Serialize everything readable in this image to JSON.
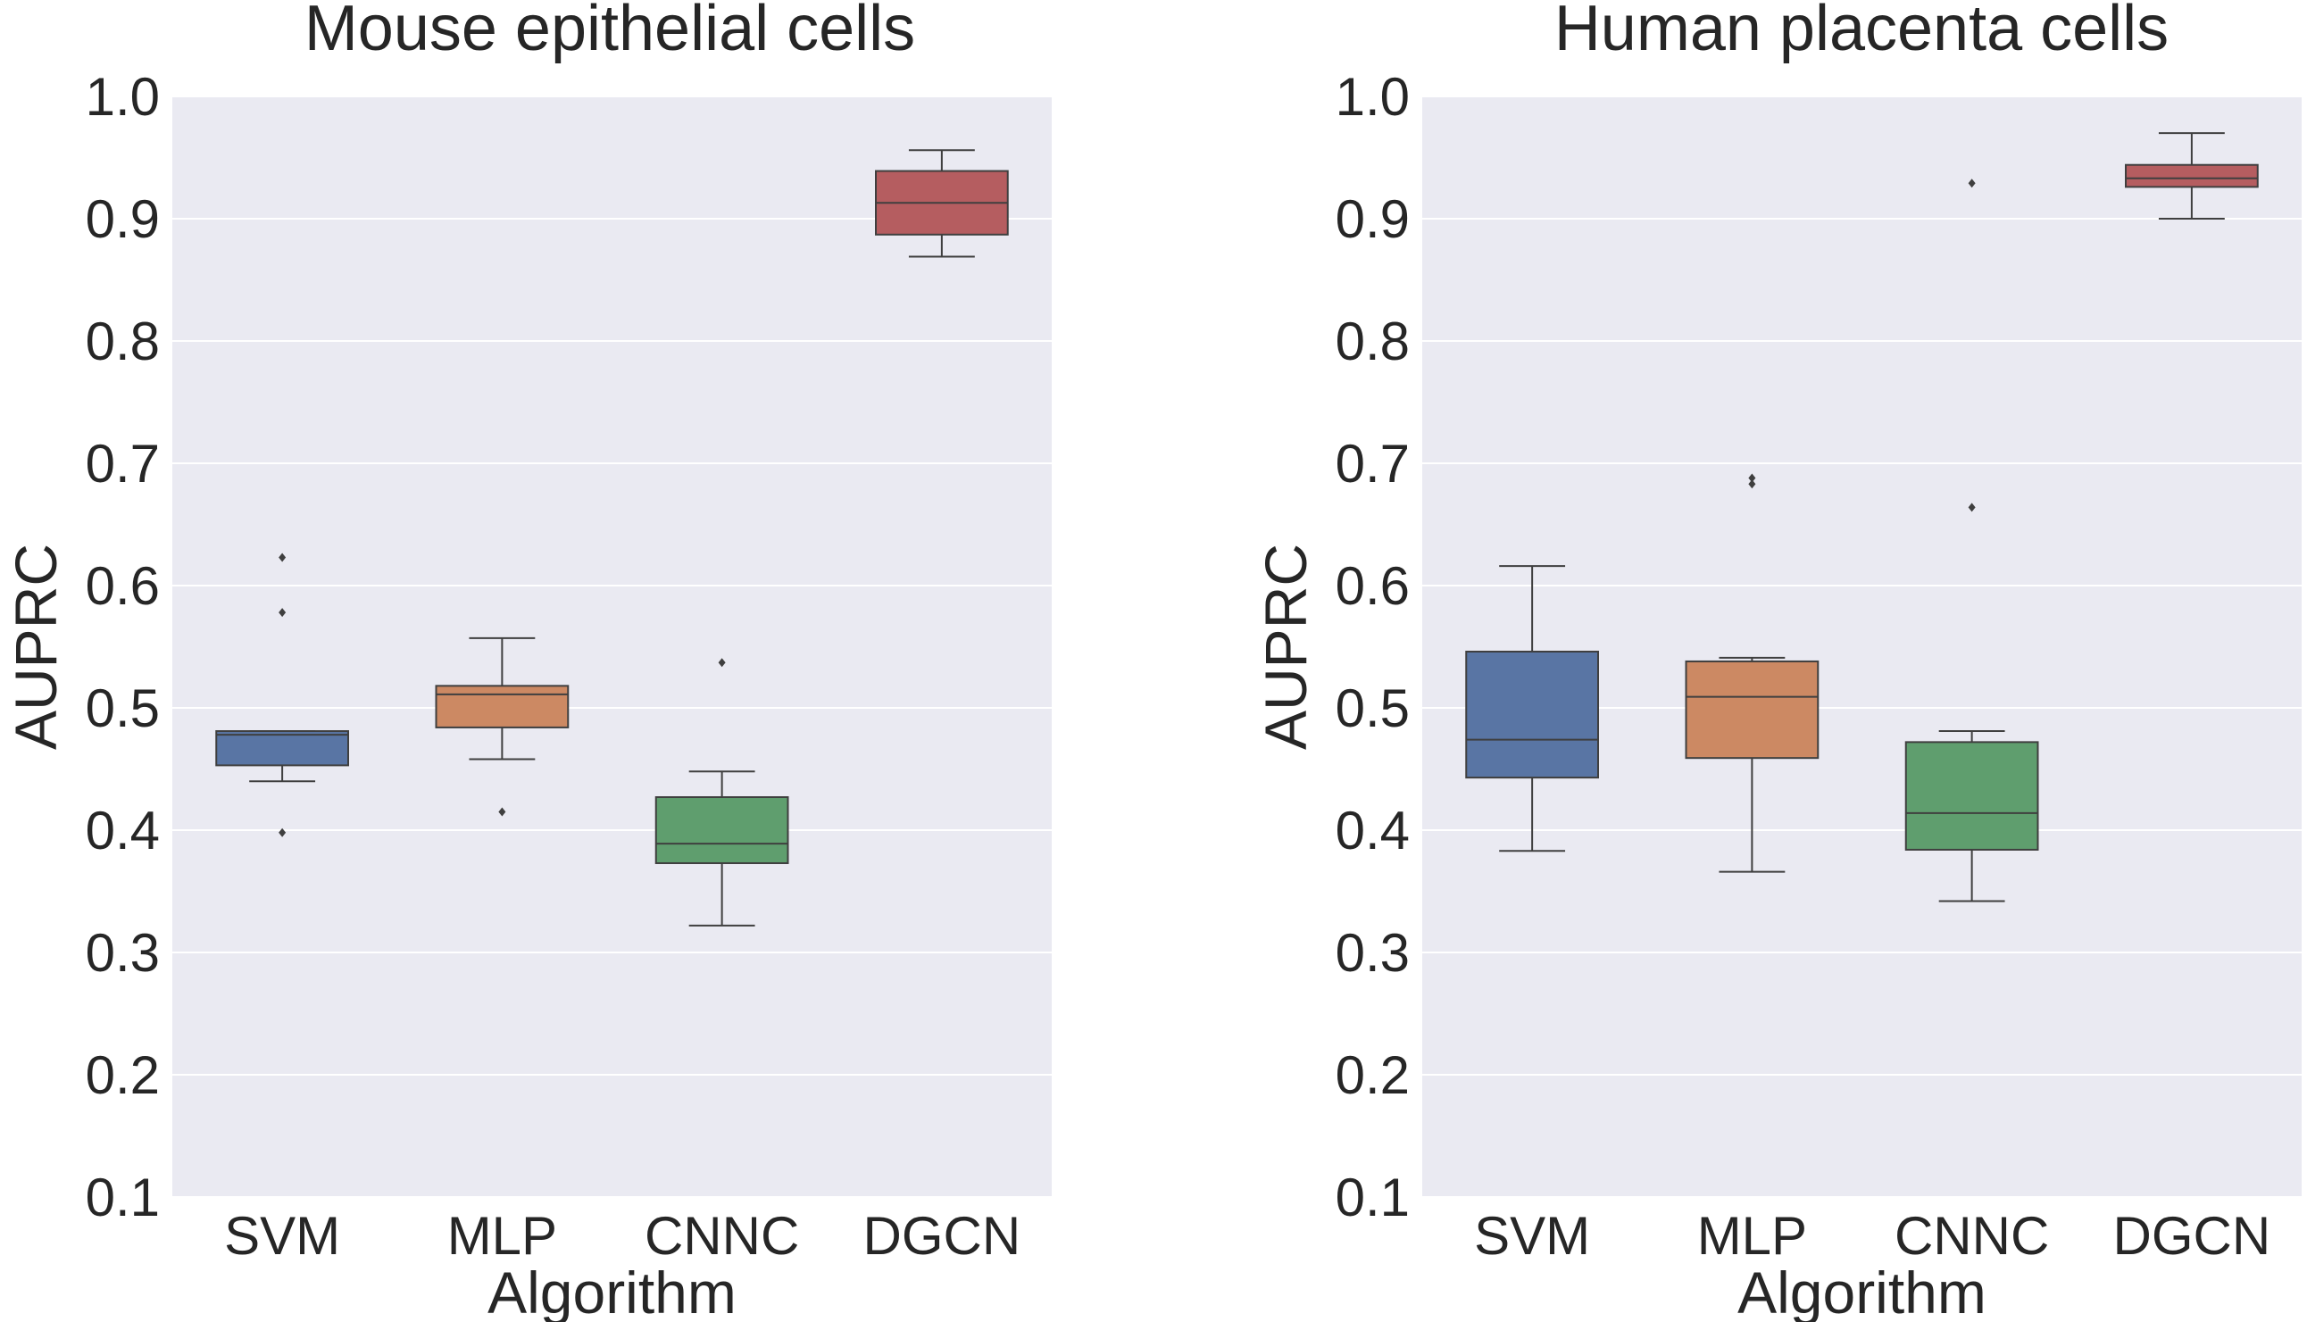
{
  "chart_data": [
    {
      "type": "box",
      "title": "Mouse epithelial  cells",
      "xlabel": "Algorithm",
      "ylabel": "AUPRC",
      "ylim": [
        0.1,
        1.0
      ],
      "yticks": [
        "0.1",
        "0.2",
        "0.3",
        "0.4",
        "0.5",
        "0.6",
        "0.7",
        "0.8",
        "0.9",
        "1.0"
      ],
      "categories": [
        "SVM",
        "MLP",
        "CNNC",
        "DGCN"
      ],
      "grid": true,
      "boxes": [
        {
          "category": "SVM",
          "color": "#5975a4",
          "whisker_low": 0.44,
          "q1": 0.453,
          "median": 0.478,
          "q3": 0.481,
          "whisker_high": 0.481,
          "outliers": [
            0.623,
            0.578,
            0.398
          ]
        },
        {
          "category": "MLP",
          "color": "#cc8963",
          "whisker_low": 0.458,
          "q1": 0.484,
          "median": 0.511,
          "q3": 0.518,
          "whisker_high": 0.557,
          "outliers": [
            0.415
          ]
        },
        {
          "category": "CNNC",
          "color": "#5f9e6e",
          "whisker_low": 0.322,
          "q1": 0.373,
          "median": 0.389,
          "q3": 0.427,
          "whisker_high": 0.448,
          "outliers": [
            0.537
          ]
        },
        {
          "category": "DGCN",
          "color": "#b55d60",
          "whisker_low": 0.869,
          "q1": 0.887,
          "median": 0.913,
          "q3": 0.939,
          "whisker_high": 0.956,
          "outliers": []
        }
      ]
    },
    {
      "type": "box",
      "title": "Human placenta cells",
      "xlabel": "Algorithm",
      "ylabel": "AUPRC",
      "ylim": [
        0.1,
        1.0
      ],
      "yticks": [
        "0.1",
        "0.2",
        "0.3",
        "0.4",
        "0.5",
        "0.6",
        "0.7",
        "0.8",
        "0.9",
        "1.0"
      ],
      "categories": [
        "SVM",
        "MLP",
        "CNNC",
        "DGCN"
      ],
      "grid": true,
      "boxes": [
        {
          "category": "SVM",
          "color": "#5975a4",
          "whisker_low": 0.383,
          "q1": 0.443,
          "median": 0.474,
          "q3": 0.546,
          "whisker_high": 0.616,
          "outliers": []
        },
        {
          "category": "MLP",
          "color": "#cc8963",
          "whisker_low": 0.366,
          "q1": 0.459,
          "median": 0.509,
          "q3": 0.538,
          "whisker_high": 0.541,
          "outliers": [
            0.688,
            0.683
          ]
        },
        {
          "category": "CNNC",
          "color": "#5f9e6e",
          "whisker_low": 0.342,
          "q1": 0.384,
          "median": 0.414,
          "q3": 0.472,
          "whisker_high": 0.481,
          "outliers": [
            0.929,
            0.664
          ]
        },
        {
          "category": "DGCN",
          "color": "#b55d60",
          "whisker_low": 0.9,
          "q1": 0.926,
          "median": 0.933,
          "q3": 0.944,
          "whisker_high": 0.97,
          "outliers": []
        }
      ]
    }
  ]
}
